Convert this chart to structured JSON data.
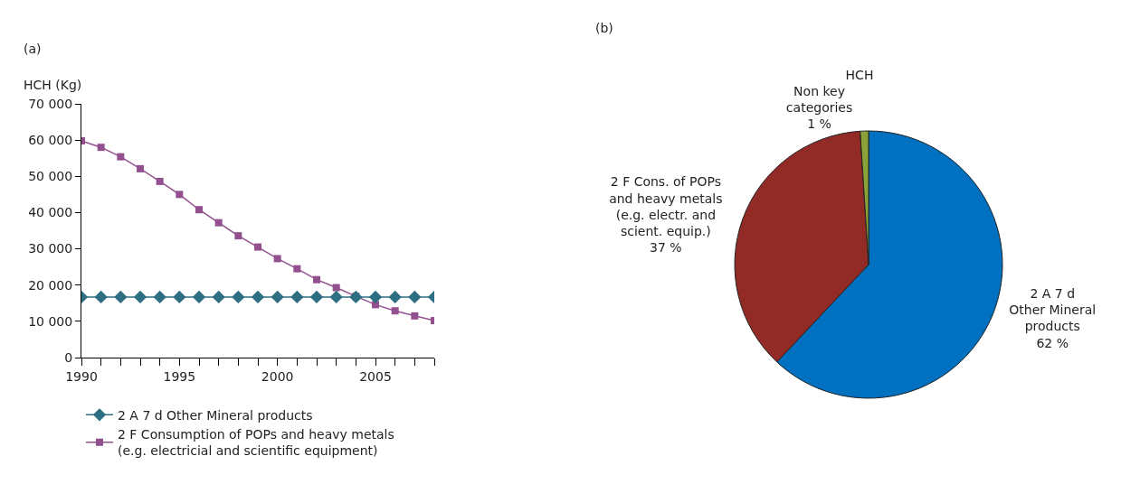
{
  "chart_data": [
    {
      "type": "line",
      "annotations": [
        "(a)"
      ],
      "ylabel": "HCH (Kg)",
      "x": [
        1990,
        1991,
        1992,
        1993,
        1994,
        1995,
        1996,
        1997,
        1998,
        1999,
        2000,
        2001,
        2002,
        2003,
        2004,
        2005,
        2006,
        2007,
        2008
      ],
      "series": [
        {
          "name": "2 A 7 d Other Mineral products",
          "color": "#2e6e82",
          "marker": "diamond",
          "values": [
            16700,
            16700,
            16700,
            16700,
            16700,
            16700,
            16700,
            16700,
            16700,
            16700,
            16700,
            16700,
            16700,
            16700,
            16700,
            16700,
            16700,
            16700,
            16700
          ]
        },
        {
          "name": "2 F Consumption of POPs and heavy metals\n(e.g. electricial and scientific equipment)",
          "color": "#92508f",
          "marker": "square",
          "values": [
            59800,
            58000,
            55400,
            52100,
            48600,
            45000,
            40800,
            37200,
            33600,
            30500,
            27300,
            24500,
            21500,
            19300,
            16900,
            14600,
            12900,
            11500,
            10200
          ]
        }
      ],
      "xlim": [
        1990,
        2008
      ],
      "xticks": [
        1990,
        1995,
        2000,
        2005
      ],
      "ylim": [
        0,
        70000
      ],
      "yticks": [
        {
          "value": 0,
          "label": "0"
        },
        {
          "value": 10000,
          "label": "10 000"
        },
        {
          "value": 20000,
          "label": "20 000"
        },
        {
          "value": 30000,
          "label": "30 000"
        },
        {
          "value": 40000,
          "label": "40 000"
        },
        {
          "value": 50000,
          "label": "50 000"
        },
        {
          "value": 60000,
          "label": "60 000"
        },
        {
          "value": 70000,
          "label": "70 000"
        }
      ],
      "grid": false,
      "legend": "bottom",
      "line_style": "solid"
    },
    {
      "type": "pie",
      "title": "HCH",
      "annotations": [
        "(b)"
      ],
      "categories": [
        "2 A 7 d\nOther Mineral\nproducts",
        "2 F Cons. of POPs\nand heavy metals\n(e.g. electr. and\nscient. equip.)",
        "Non key\ncategories"
      ],
      "values": [
        62,
        37,
        1
      ],
      "value_labels": [
        "62 %",
        "37 %",
        "1 %"
      ],
      "colors": [
        "#0070c0",
        "#922a25",
        "#8aa238"
      ],
      "legend": false
    }
  ]
}
